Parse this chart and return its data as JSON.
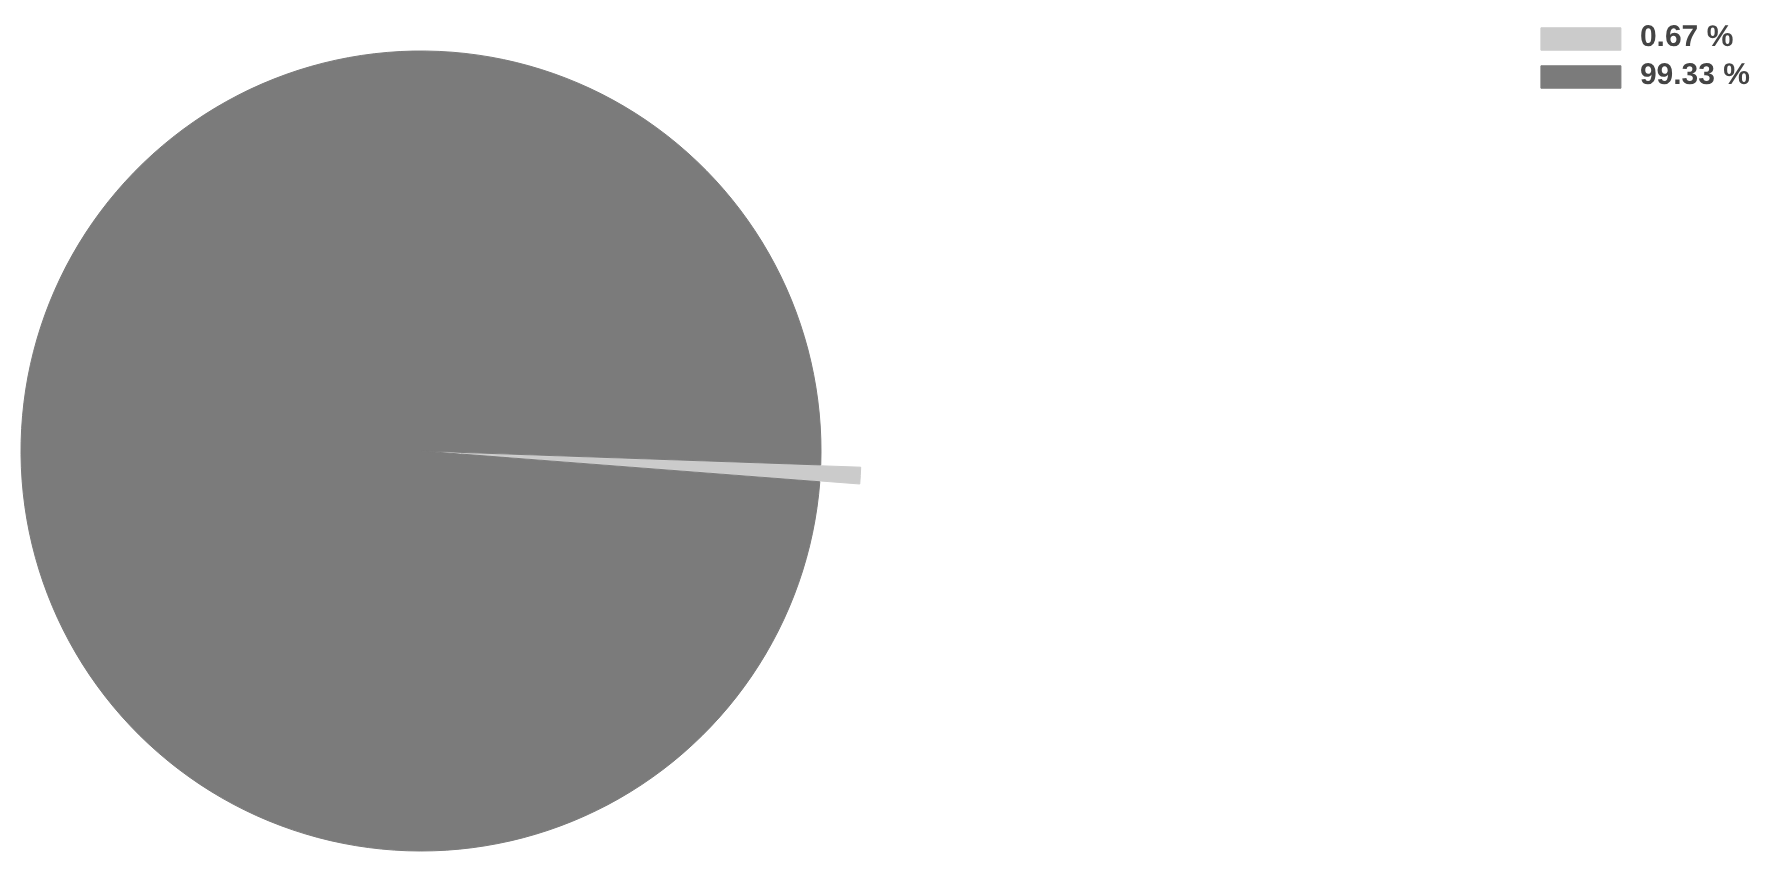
{
  "chart_data": {
    "type": "pie",
    "categories": [
      "0.67 %",
      "99.33 %"
    ],
    "values": [
      0.67,
      99.33
    ],
    "colors": [
      "#cbcbcb",
      "#7b7b7b"
    ],
    "legend": "top right"
  }
}
